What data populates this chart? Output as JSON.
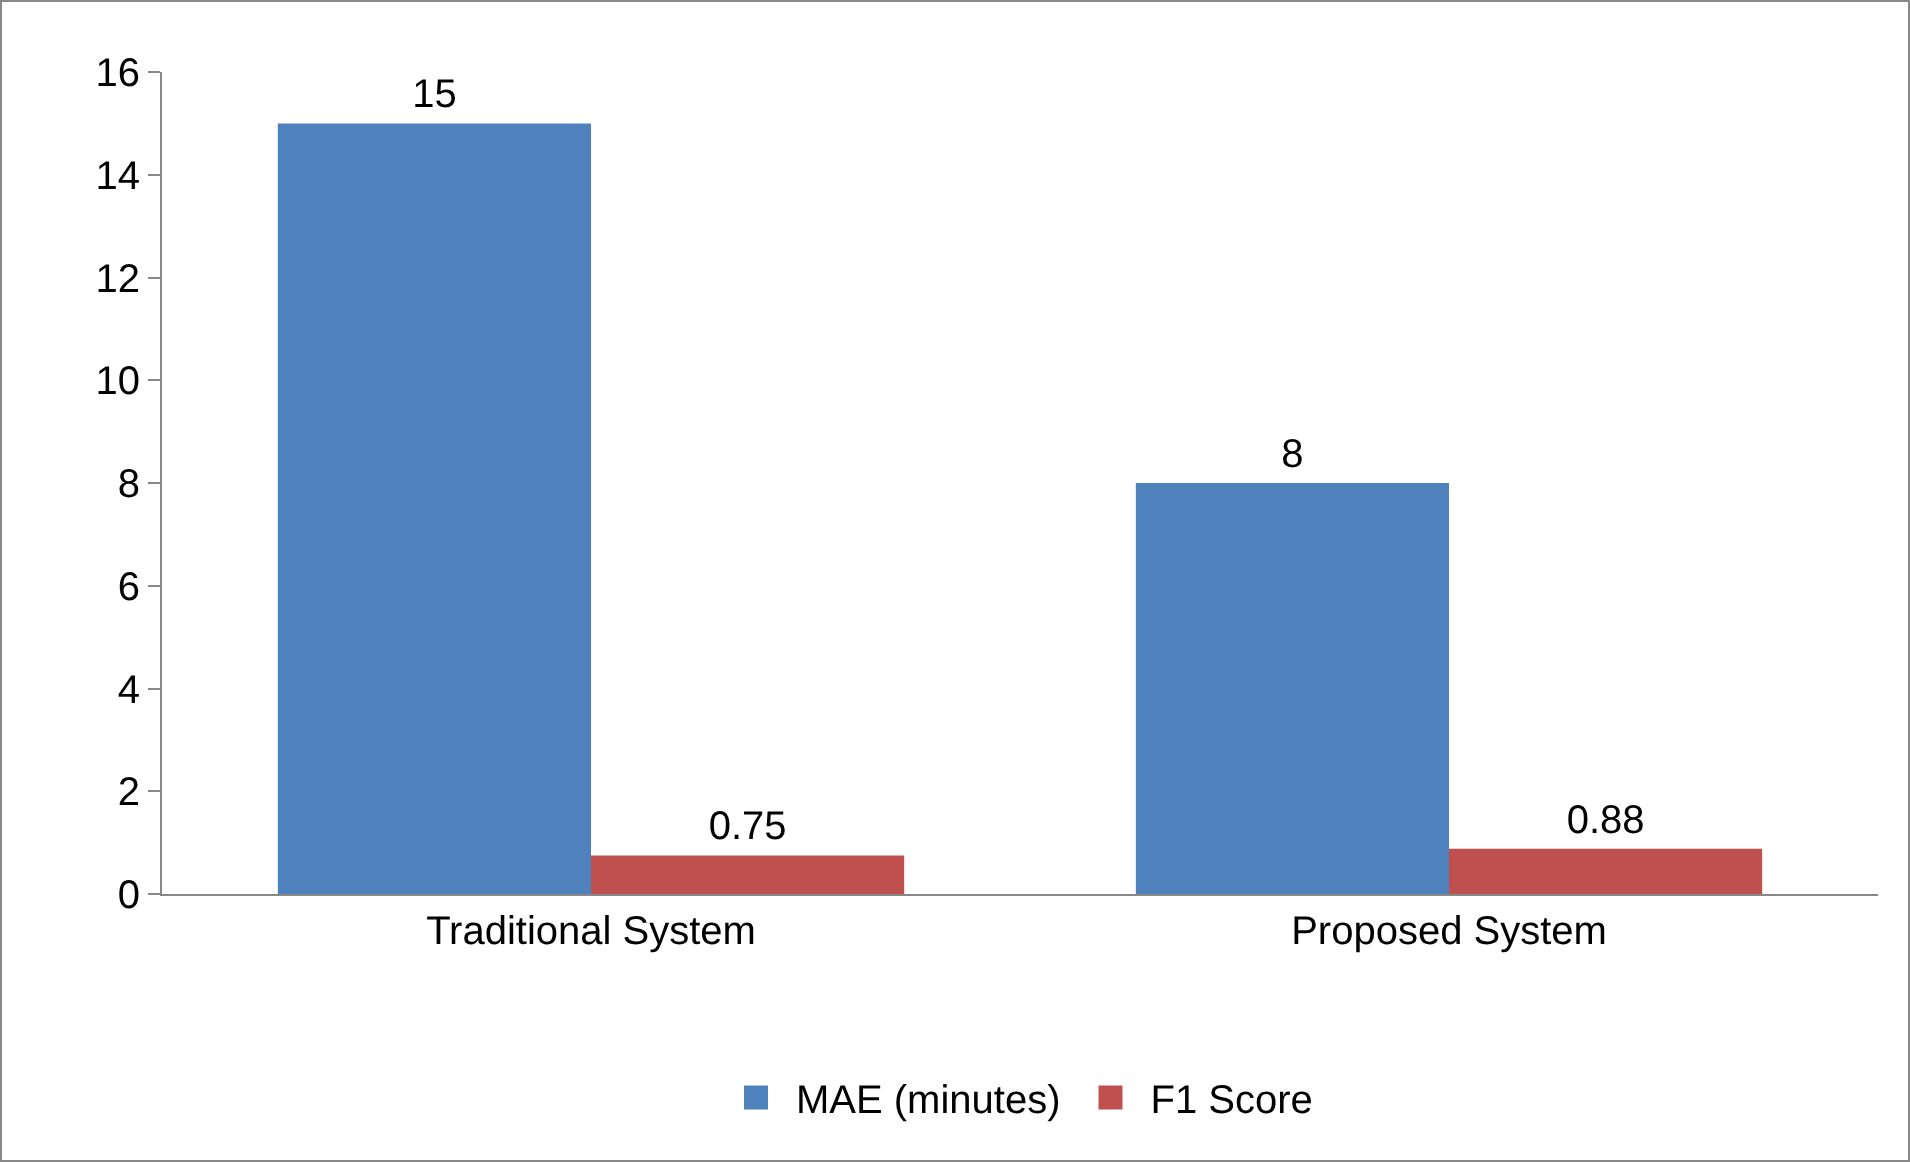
{
  "chart_data": {
    "type": "bar",
    "categories": [
      "Traditional System",
      "Proposed System"
    ],
    "series": [
      {
        "name": "MAE (minutes)",
        "color": "#4f81bd",
        "values": [
          15,
          8
        ]
      },
      {
        "name": "F1 Score",
        "color": "#c0504d",
        "values": [
          0.75,
          0.88
        ]
      }
    ],
    "ylim": [
      0,
      16
    ],
    "yticks": [
      0,
      2,
      4,
      6,
      8,
      10,
      12,
      14,
      16
    ],
    "grid": false,
    "legend": "bottom",
    "data_labels": true
  }
}
